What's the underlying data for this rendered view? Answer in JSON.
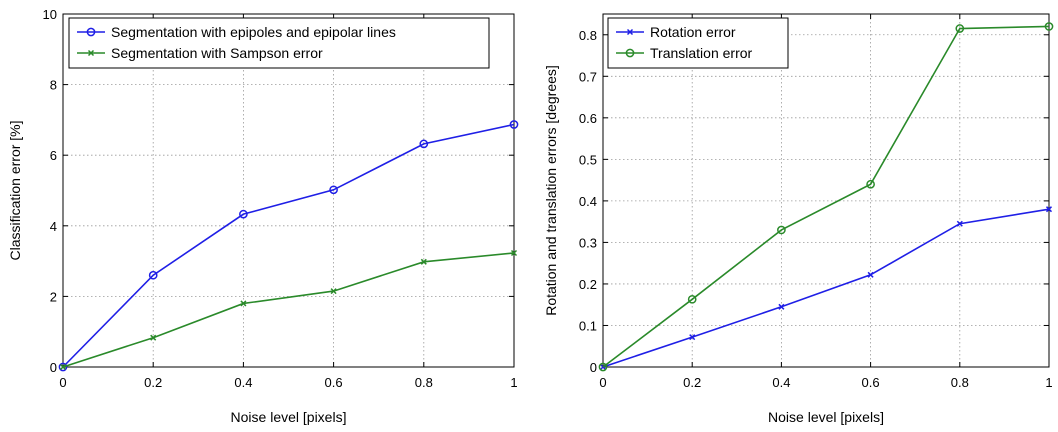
{
  "chart_data": [
    {
      "type": "line",
      "title": "",
      "xlabel": "Noise level [pixels]",
      "ylabel": "Classification error [%]",
      "xlim": [
        0,
        1
      ],
      "ylim": [
        0,
        10
      ],
      "xticks": [
        0,
        0.2,
        0.4,
        0.6,
        0.8,
        1
      ],
      "yticks": [
        0,
        2,
        4,
        6,
        8,
        10
      ],
      "xtick_labels": [
        "0",
        "0.2",
        "0.4",
        "0.6",
        "0.8",
        "1"
      ],
      "ytick_labels": [
        "0",
        "2",
        "4",
        "6",
        "8",
        "10"
      ],
      "grid": true,
      "legend_position": "top-left",
      "series": [
        {
          "name": "Segmentation with epipoles and epipolar lines",
          "color": "#1f1fe6",
          "marker": "circle",
          "x": [
            0,
            0.2,
            0.4,
            0.6,
            0.8,
            1
          ],
          "y": [
            0,
            2.6,
            4.33,
            5.02,
            6.32,
            6.87
          ]
        },
        {
          "name": "Segmentation with Sampson error",
          "color": "#2a8a2a",
          "marker": "x",
          "x": [
            0,
            0.2,
            0.4,
            0.6,
            0.8,
            1
          ],
          "y": [
            0,
            0.83,
            1.8,
            2.15,
            2.98,
            3.23
          ]
        }
      ]
    },
    {
      "type": "line",
      "title": "",
      "xlabel": "Noise level [pixels]",
      "ylabel": "Rotation and translation errors [degrees]",
      "xlim": [
        0,
        1
      ],
      "ylim": [
        0,
        0.85
      ],
      "xticks": [
        0,
        0.2,
        0.4,
        0.6,
        0.8,
        1
      ],
      "yticks": [
        0,
        0.1,
        0.2,
        0.3,
        0.4,
        0.5,
        0.6,
        0.7,
        0.8
      ],
      "xtick_labels": [
        "0",
        "0.2",
        "0.4",
        "0.6",
        "0.8",
        "1"
      ],
      "ytick_labels": [
        "0",
        "0.1",
        "0.2",
        "0.3",
        "0.4",
        "0.5",
        "0.6",
        "0.7",
        "0.8"
      ],
      "grid": true,
      "legend_position": "top-left",
      "series": [
        {
          "name": "Rotation error",
          "color": "#1f1fe6",
          "marker": "x",
          "x": [
            0,
            0.2,
            0.4,
            0.6,
            0.8,
            1
          ],
          "y": [
            0,
            0.072,
            0.145,
            0.222,
            0.345,
            0.38
          ]
        },
        {
          "name": "Translation error",
          "color": "#2a8a2a",
          "marker": "circle",
          "x": [
            0,
            0.2,
            0.4,
            0.6,
            0.8,
            1
          ],
          "y": [
            0,
            0.163,
            0.33,
            0.44,
            0.815,
            0.82
          ]
        }
      ]
    }
  ]
}
